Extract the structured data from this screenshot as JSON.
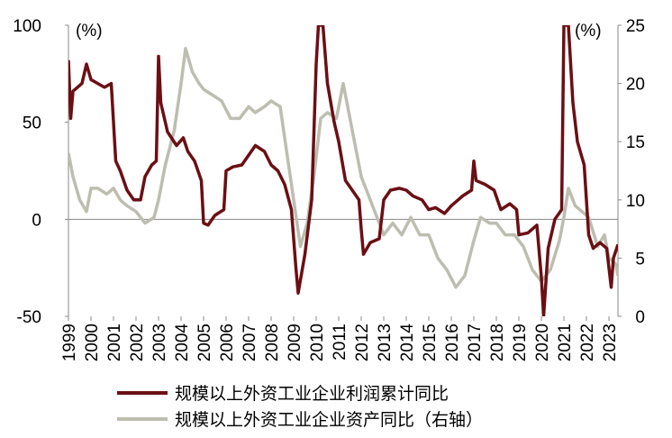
{
  "chart_data": {
    "type": "line",
    "annotations": [
      "(%)",
      "(%)"
    ],
    "xlim": [
      1999,
      2023.4
    ],
    "xticks": [
      1999,
      2000,
      2001,
      2002,
      2003,
      2004,
      2005,
      2006,
      2007,
      2008,
      2009,
      2010,
      2011,
      2012,
      2013,
      2014,
      2015,
      2016,
      2017,
      2018,
      2019,
      2020,
      2021,
      2022,
      2023
    ],
    "ylim": [
      -50,
      100
    ],
    "yticks": [
      -50,
      0,
      50,
      100
    ],
    "y2lim": [
      0,
      25
    ],
    "y2ticks": [
      0,
      5,
      10,
      15,
      20,
      25
    ],
    "legend": "bottom",
    "series": [
      {
        "name": "规模以上外资工业企业利润累计同比",
        "color": "#6b0f14",
        "axis": "y",
        "x": [
          1999.0,
          1999.1,
          1999.2,
          1999.4,
          1999.6,
          1999.8,
          2000.0,
          2000.3,
          2000.6,
          2000.9,
          2001.1,
          2001.3,
          2001.6,
          2001.9,
          2002.2,
          2002.4,
          2002.7,
          2002.9,
          2003.0,
          2003.1,
          2003.4,
          2003.8,
          2004.1,
          2004.3,
          2004.6,
          2004.9,
          2005.0,
          2005.2,
          2005.5,
          2005.9,
          2006.0,
          2006.3,
          2006.7,
          2007.0,
          2007.3,
          2007.7,
          2008.0,
          2008.3,
          2008.6,
          2008.9,
          2009.1,
          2009.2,
          2009.5,
          2009.8,
          2010.0,
          2010.1,
          2010.3,
          2010.5,
          2010.8,
          2011.0,
          2011.3,
          2011.6,
          2011.9,
          2012.0,
          2012.1,
          2012.4,
          2012.8,
          2013.0,
          2013.3,
          2013.7,
          2014.0,
          2014.3,
          2014.7,
          2015.0,
          2015.3,
          2015.7,
          2016.0,
          2016.5,
          2016.9,
          2017.0,
          2017.1,
          2017.5,
          2017.9,
          2018.2,
          2018.6,
          2018.9,
          2019.0,
          2019.4,
          2019.8,
          2020.0,
          2020.1,
          2020.3,
          2020.6,
          2020.9,
          2021.0,
          2021.2,
          2021.4,
          2021.6,
          2021.9,
          2022.1,
          2022.3,
          2022.6,
          2022.9,
          2023.1,
          2023.2,
          2023.4
        ],
        "values": [
          82,
          52,
          66,
          68,
          70,
          80,
          72,
          70,
          68,
          70,
          30,
          25,
          15,
          10,
          10,
          22,
          28,
          30,
          84,
          60,
          45,
          38,
          42,
          35,
          30,
          20,
          -2,
          -3,
          2,
          5,
          25,
          27,
          28,
          33,
          38,
          35,
          28,
          25,
          18,
          5,
          -25,
          -38,
          -18,
          10,
          80,
          100,
          100,
          70,
          50,
          40,
          20,
          15,
          10,
          -5,
          -18,
          -12,
          -10,
          10,
          15,
          16,
          15,
          12,
          10,
          5,
          6,
          3,
          7,
          12,
          15,
          30,
          20,
          18,
          15,
          5,
          8,
          5,
          -8,
          -7,
          -3,
          -30,
          -50,
          -15,
          0,
          5,
          100,
          100,
          60,
          40,
          28,
          -8,
          -15,
          -12,
          -15,
          -35,
          -20,
          -13
        ]
      },
      {
        "name": "规模以上外资工业企业资产同比（右轴）",
        "color": "#bdbdb0",
        "axis": "y2",
        "x": [
          1999.0,
          1999.2,
          1999.5,
          1999.8,
          2000.0,
          2000.3,
          2000.7,
          2001.0,
          2001.3,
          2001.6,
          2002.0,
          2002.4,
          2002.8,
          2003.0,
          2003.3,
          2003.7,
          2004.0,
          2004.2,
          2004.5,
          2004.8,
          2005.0,
          2005.4,
          2005.8,
          2006.2,
          2006.6,
          2007.0,
          2007.3,
          2007.7,
          2008.0,
          2008.4,
          2008.7,
          2009.0,
          2009.3,
          2009.6,
          2009.9,
          2010.2,
          2010.5,
          2010.9,
          2011.2,
          2011.4,
          2011.7,
          2012.0,
          2012.4,
          2012.8,
          2013.0,
          2013.4,
          2013.8,
          2014.2,
          2014.6,
          2015.0,
          2015.4,
          2015.8,
          2016.2,
          2016.6,
          2017.0,
          2017.3,
          2017.7,
          2018.0,
          2018.4,
          2018.8,
          2019.2,
          2019.6,
          2020.0,
          2020.4,
          2020.8,
          2021.0,
          2021.2,
          2021.5,
          2021.8,
          2022.1,
          2022.5,
          2022.8,
          2023.0,
          2023.3,
          2023.4
        ],
        "values": [
          14,
          12,
          10,
          9,
          11,
          11,
          10.5,
          11,
          10,
          9.5,
          9,
          8,
          8.5,
          10,
          13,
          16,
          20,
          23,
          21,
          20,
          19.5,
          19,
          18.5,
          17,
          17,
          18,
          17.5,
          18,
          18.5,
          18,
          14,
          10,
          6,
          8,
          12,
          17,
          17.5,
          17,
          20,
          18,
          15,
          12,
          10,
          8,
          7,
          8,
          7,
          8.5,
          7,
          7,
          5,
          4,
          2.5,
          3.5,
          6.5,
          8.5,
          8,
          8,
          7,
          7,
          6,
          4,
          3,
          4,
          6.5,
          8.5,
          11,
          9.5,
          9,
          8.5,
          6,
          7,
          5,
          4.5,
          3.5
        ]
      }
    ]
  }
}
